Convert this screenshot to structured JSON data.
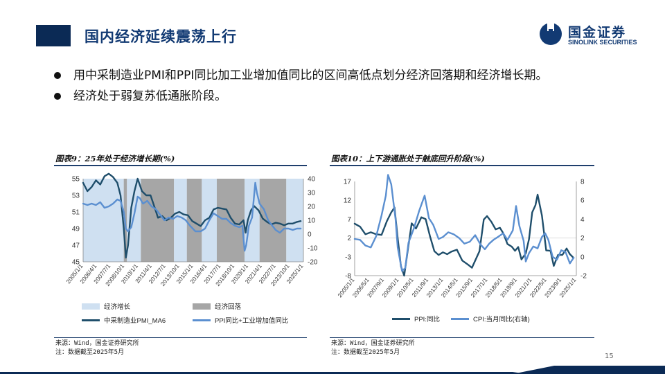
{
  "header": {
    "title": "国内经济延续震荡上行"
  },
  "logo": {
    "cn": "国金证券",
    "en": "SINOLINK SECURITIES"
  },
  "bullets": [
    "用中采制造业PMI和PPI同比加工业增加值同比的区间高低点划分经济回落期和经济增长期。",
    "经济处于弱复苏低通胀阶段。"
  ],
  "figures": [
    {
      "title": "图表9：25年处于经济增长期(%)",
      "source": "来源：Wind，国金证券研究所",
      "note": "注：数据截至2025年5月"
    },
    {
      "title": "图表10：上下游通胀处于触底回升阶段(%)",
      "source": "来源：Wind，国金证券研究所",
      "note": "注：数据截至2025年5月"
    }
  ],
  "page_number": "15",
  "colors": {
    "navy": "#0b2a55",
    "accent_blue": "#123a73",
    "dark_line": "#1f4e6b",
    "light_line": "#5b8fd0",
    "growth_band": "#cfe0f1",
    "decline_band": "#a6a6a6"
  },
  "chart_data": [
    {
      "type": "line",
      "title": "",
      "x_tick_labels": [
        "2005/1/1",
        "2006/4/1",
        "2007/7/1",
        "2008/10/1",
        "2010/1/1",
        "2011/4/1",
        "2012/7/1",
        "2013/10/1",
        "2015/1/1",
        "2016/4/1",
        "2017/7/1",
        "2018/10/1",
        "2020/1/1",
        "2021/4/1",
        "2022/7/1",
        "2023/10/1",
        "2025/1/1"
      ],
      "ylim_left": [
        45,
        55
      ],
      "yticks_left": [
        45,
        47,
        49,
        51,
        53,
        55
      ],
      "ylim_right": [
        -20,
        40
      ],
      "yticks_right": [
        -20,
        -10,
        0,
        10,
        20,
        30,
        40
      ],
      "xlim": [
        2005.0,
        2025.6
      ],
      "bands": [
        {
          "type": "growth",
          "start": 2005.0,
          "end": 2007.3
        },
        {
          "type": "growth",
          "start": 2007.3,
          "end": 2008.8
        },
        {
          "type": "decline",
          "start": 2008.8,
          "end": 2009.1
        },
        {
          "type": "growth",
          "start": 2009.1,
          "end": 2010.4
        },
        {
          "type": "decline",
          "start": 2010.4,
          "end": 2013.5
        },
        {
          "type": "growth",
          "start": 2013.5,
          "end": 2014.7
        },
        {
          "type": "decline",
          "start": 2014.7,
          "end": 2016.1
        },
        {
          "type": "growth",
          "start": 2016.1,
          "end": 2017.5
        },
        {
          "type": "decline",
          "start": 2017.5,
          "end": 2020.1
        },
        {
          "type": "growth",
          "start": 2020.1,
          "end": 2021.5
        },
        {
          "type": "decline",
          "start": 2021.5,
          "end": 2024.0
        },
        {
          "type": "growth",
          "start": 2024.0,
          "end": 2025.6
        }
      ],
      "legend": [
        {
          "name": "经济增长",
          "kind": "band"
        },
        {
          "name": "经济回落",
          "kind": "band"
        },
        {
          "name": "中采制造业PMI_MA6",
          "kind": "line"
        },
        {
          "name": "PPI同比+工业增加值同比",
          "kind": "line"
        }
      ],
      "series": [
        {
          "name": "中采制造业PMI_MA6",
          "axis": "left",
          "x": [
            2005.0,
            2005.4,
            2005.8,
            2006.2,
            2006.6,
            2007.0,
            2007.4,
            2007.8,
            2008.2,
            2008.5,
            2008.8,
            2009.0,
            2009.2,
            2009.5,
            2009.8,
            2010.1,
            2010.5,
            2010.9,
            2011.3,
            2011.7,
            2012.0,
            2012.4,
            2012.8,
            2013.2,
            2013.6,
            2014.0,
            2014.4,
            2014.8,
            2015.2,
            2015.6,
            2016.0,
            2016.4,
            2016.8,
            2017.2,
            2017.6,
            2018.0,
            2018.4,
            2018.8,
            2019.2,
            2019.6,
            2020.0,
            2020.2,
            2020.4,
            2020.7,
            2021.0,
            2021.4,
            2021.8,
            2022.2,
            2022.6,
            2023.0,
            2023.4,
            2023.8,
            2024.2,
            2024.6,
            2025.0,
            2025.35
          ],
          "y": [
            54.5,
            53.5,
            54.0,
            54.8,
            54.3,
            55.3,
            55.6,
            55.2,
            54.5,
            53.0,
            49.0,
            45.5,
            47.0,
            51.5,
            53.5,
            55.0,
            53.5,
            53.0,
            53.0,
            51.5,
            50.3,
            50.5,
            50.0,
            50.3,
            50.8,
            51.0,
            50.7,
            50.6,
            49.9,
            49.6,
            49.3,
            50.0,
            50.3,
            51.3,
            51.5,
            51.4,
            51.3,
            50.3,
            49.6,
            49.5,
            50.0,
            48.5,
            50.0,
            51.2,
            51.7,
            51.2,
            50.2,
            49.8,
            49.5,
            49.7,
            49.6,
            49.4,
            49.6,
            49.6,
            49.8,
            49.9
          ]
        },
        {
          "name": "PPI同比+工业增加值同比",
          "axis": "right",
          "x": [
            2005.0,
            2005.4,
            2005.8,
            2006.2,
            2006.6,
            2007.0,
            2007.4,
            2007.8,
            2008.2,
            2008.5,
            2008.8,
            2009.0,
            2009.2,
            2009.5,
            2009.8,
            2010.1,
            2010.3,
            2010.6,
            2011.0,
            2011.4,
            2011.8,
            2012.2,
            2012.6,
            2013.0,
            2013.4,
            2013.8,
            2014.2,
            2014.6,
            2015.0,
            2015.5,
            2016.0,
            2016.4,
            2016.8,
            2017.2,
            2017.6,
            2018.0,
            2018.4,
            2018.8,
            2019.2,
            2019.6,
            2019.9,
            2020.1,
            2020.25,
            2020.5,
            2020.8,
            2021.1,
            2021.25,
            2021.5,
            2021.9,
            2022.3,
            2022.7,
            2023.0,
            2023.4,
            2023.8,
            2024.2,
            2024.6,
            2025.0,
            2025.35
          ],
          "y": [
            22,
            21,
            22,
            21,
            23,
            19,
            20,
            22,
            25,
            24,
            16,
            4,
            2,
            5,
            15,
            27,
            26,
            22,
            24,
            20,
            18,
            14,
            10,
            12,
            11,
            13,
            12,
            10,
            6,
            2,
            2,
            4,
            10,
            15,
            13,
            11,
            11,
            8,
            6,
            5,
            6,
            -12,
            -8,
            6,
            12,
            37,
            30,
            22,
            18,
            10,
            6,
            3,
            1,
            4,
            4,
            3,
            4,
            4
          ]
        }
      ]
    },
    {
      "type": "line",
      "title": "",
      "x_tick_labels": [
        "2005/1/1",
        "2006/5/1",
        "2007/9/1",
        "2009/1/1",
        "2010/5/1",
        "2011/9/1",
        "2013/1/1",
        "2014/5/1",
        "2015/9/1",
        "2017/1/1",
        "2018/5/1",
        "2019/9/1",
        "2021/1/1",
        "2022/5/1",
        "2023/9/1",
        "2025/1/1"
      ],
      "ylim_left": [
        -8,
        17
      ],
      "yticks_left": [
        -8,
        -3,
        2,
        7,
        12,
        17
      ],
      "ylim_right": [
        -2,
        8
      ],
      "yticks_right": [
        -2,
        0,
        2,
        4,
        6,
        8
      ],
      "xlim": [
        2005.0,
        2025.6
      ],
      "legend": [
        {
          "name": "PPI:同比",
          "kind": "line"
        },
        {
          "name": "CPI:当月同比(右轴)",
          "kind": "line"
        }
      ],
      "series": [
        {
          "name": "PPI:同比",
          "axis": "left",
          "x": [
            2005.0,
            2005.5,
            2006.0,
            2006.5,
            2007.0,
            2007.5,
            2008.0,
            2008.4,
            2008.7,
            2009.0,
            2009.3,
            2009.6,
            2009.9,
            2010.3,
            2010.7,
            2011.2,
            2011.6,
            2012.0,
            2012.4,
            2012.8,
            2013.2,
            2013.6,
            2014.0,
            2014.5,
            2015.0,
            2015.5,
            2015.9,
            2016.2,
            2016.6,
            2017.0,
            2017.3,
            2017.7,
            2018.1,
            2018.5,
            2018.8,
            2019.2,
            2019.6,
            2019.9,
            2020.2,
            2020.5,
            2020.9,
            2021.2,
            2021.5,
            2021.8,
            2022.0,
            2022.4,
            2022.8,
            2023.2,
            2023.5,
            2023.9,
            2024.3,
            2024.7,
            2025.0,
            2025.35
          ],
          "y": [
            5.8,
            5.0,
            3.0,
            3.5,
            3.0,
            2.8,
            6.5,
            8.8,
            10.1,
            2.0,
            -5.5,
            -8.0,
            -2.0,
            5.9,
            4.5,
            7.5,
            7.0,
            2.5,
            -1.5,
            -2.5,
            -1.8,
            -2.3,
            -1.6,
            -1.1,
            -4.0,
            -5.0,
            -5.9,
            -4.0,
            -1.5,
            6.9,
            7.8,
            6.3,
            4.3,
            4.7,
            3.3,
            0.4,
            -0.3,
            -1.4,
            -0.4,
            -3.7,
            -2.1,
            1.7,
            8.8,
            10.7,
            13.5,
            8.0,
            -1.3,
            -1.4,
            -5.4,
            -2.5,
            -2.5,
            -0.8,
            -2.3,
            -3.3
          ]
        },
        {
          "name": "CPI:当月同比(右轴)",
          "axis": "right",
          "x": [
            2005.0,
            2005.5,
            2006.0,
            2006.5,
            2007.0,
            2007.5,
            2007.9,
            2008.1,
            2008.4,
            2008.8,
            2009.0,
            2009.4,
            2009.7,
            2010.0,
            2010.5,
            2011.0,
            2011.5,
            2011.9,
            2012.3,
            2012.8,
            2013.2,
            2013.7,
            2014.2,
            2014.7,
            2015.2,
            2015.7,
            2016.2,
            2016.7,
            2017.1,
            2017.5,
            2017.9,
            2018.3,
            2018.8,
            2019.2,
            2019.7,
            2020.0,
            2020.3,
            2020.7,
            2020.9,
            2021.2,
            2021.6,
            2022.0,
            2022.4,
            2022.7,
            2023.0,
            2023.4,
            2023.8,
            2024.2,
            2024.6,
            2025.0,
            2025.35
          ],
          "y": [
            1.9,
            1.8,
            1.2,
            1.0,
            2.2,
            4.4,
            6.5,
            8.7,
            7.7,
            4.0,
            1.0,
            -1.5,
            -1.2,
            1.5,
            3.0,
            4.9,
            6.5,
            4.1,
            3.4,
            1.9,
            2.1,
            2.6,
            2.4,
            2.0,
            1.4,
            1.6,
            2.3,
            1.3,
            0.8,
            1.4,
            1.8,
            2.1,
            2.5,
            1.8,
            2.8,
            5.4,
            3.3,
            1.7,
            -0.5,
            0.4,
            1.1,
            0.9,
            2.1,
            2.5,
            1.8,
            0.0,
            -0.3,
            0.7,
            0.5,
            -0.7,
            -0.1
          ]
        }
      ]
    }
  ]
}
